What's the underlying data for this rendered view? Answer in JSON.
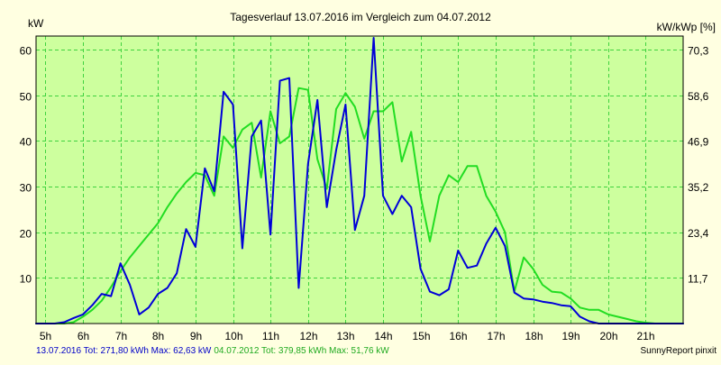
{
  "chart_data": {
    "type": "line",
    "title": "Tagesverlauf 13.07.2016 im Vergleich zum 04.07.2012",
    "ylabel_left": "kW",
    "ylabel_right": "kW/kWp [%]",
    "xlim": [
      4.75,
      22.0
    ],
    "ylim": [
      0,
      63
    ],
    "grid": true,
    "y_ticks_left": [
      10,
      20,
      30,
      40,
      50,
      60
    ],
    "y_ticks_left_labels": [
      "10",
      "20",
      "30",
      "40",
      "50",
      "60"
    ],
    "y_ticks_right": [
      11.7,
      23.4,
      35.2,
      46.9,
      58.6,
      70.3
    ],
    "y_ticks_right_labels": [
      "11,7",
      "23,4",
      "35,2",
      "46,9",
      "58,6",
      "70,3"
    ],
    "right_axis_scale": 1.172,
    "x_ticks": [
      5,
      6,
      7,
      8,
      9,
      10,
      11,
      12,
      13,
      14,
      15,
      16,
      17,
      18,
      19,
      20,
      21
    ],
    "x_tick_labels": [
      "5h",
      "6h",
      "7h",
      "8h",
      "9h",
      "10h",
      "11h",
      "12h",
      "13h",
      "14h",
      "15h",
      "16h",
      "17h",
      "18h",
      "19h",
      "20h",
      "21h"
    ],
    "series": [
      {
        "name": "13.07.2016",
        "color": "#0000d8",
        "x": [
          4.75,
          5.0,
          5.25,
          5.5,
          5.75,
          6.0,
          6.25,
          6.5,
          6.75,
          7.0,
          7.25,
          7.5,
          7.75,
          8.0,
          8.25,
          8.5,
          8.75,
          9.0,
          9.25,
          9.5,
          9.75,
          10.0,
          10.25,
          10.5,
          10.75,
          11.0,
          11.25,
          11.5,
          11.75,
          12.0,
          12.25,
          12.5,
          12.75,
          13.0,
          13.25,
          13.5,
          13.75,
          14.0,
          14.25,
          14.5,
          14.75,
          15.0,
          15.25,
          15.5,
          15.75,
          16.0,
          16.25,
          16.5,
          16.75,
          17.0,
          17.25,
          17.5,
          17.75,
          18.0,
          18.25,
          18.5,
          18.75,
          19.0,
          19.25,
          19.5,
          19.75,
          20.0,
          20.25,
          20.5,
          20.75,
          21.0,
          21.25,
          21.5,
          22.0
        ],
        "values": [
          0,
          0,
          0,
          0.3,
          1.2,
          2.0,
          4.0,
          6.5,
          6.0,
          13.2,
          8.5,
          2.0,
          3.5,
          6.5,
          7.8,
          11.0,
          20.7,
          16.8,
          34.0,
          29.0,
          50.8,
          48.0,
          16.5,
          41.0,
          44.5,
          19.5,
          53.2,
          53.8,
          7.8,
          35.0,
          49.0,
          25.5,
          38.0,
          48.0,
          20.5,
          28.0,
          62.6,
          28.0,
          24.0,
          28.0,
          25.5,
          12.0,
          7.0,
          6.2,
          7.5,
          16.0,
          12.2,
          12.7,
          17.5,
          21.0,
          17.0,
          6.8,
          5.5,
          5.3,
          4.8,
          4.5,
          4.0,
          3.8,
          1.5,
          0.5,
          0,
          0,
          0,
          0,
          0,
          0,
          0,
          0,
          0
        ]
      },
      {
        "name": "04.07.2012",
        "color": "#22dd22",
        "x": [
          4.75,
          5.0,
          5.25,
          5.5,
          5.75,
          6.0,
          6.25,
          6.5,
          6.75,
          7.0,
          7.25,
          7.5,
          7.75,
          8.0,
          8.25,
          8.5,
          8.75,
          9.0,
          9.25,
          9.5,
          9.75,
          10.0,
          10.25,
          10.5,
          10.75,
          11.0,
          11.25,
          11.5,
          11.75,
          12.0,
          12.25,
          12.5,
          12.75,
          13.0,
          13.25,
          13.5,
          13.75,
          14.0,
          14.25,
          14.5,
          14.75,
          15.0,
          15.25,
          15.5,
          15.75,
          16.0,
          16.25,
          16.5,
          16.75,
          17.0,
          17.25,
          17.5,
          17.75,
          18.0,
          18.25,
          18.5,
          18.75,
          19.0,
          19.25,
          19.5,
          19.75,
          20.0,
          20.25,
          20.5,
          20.75,
          21.0,
          21.25,
          21.5,
          22.0
        ],
        "values": [
          0,
          0,
          0,
          0,
          0.3,
          1.5,
          3.0,
          5.0,
          8.0,
          11.5,
          14.5,
          17.0,
          19.5,
          22.0,
          25.5,
          28.5,
          31.0,
          33.0,
          32.5,
          28.0,
          41.0,
          38.5,
          42.5,
          44.0,
          32.0,
          46.5,
          39.5,
          41.0,
          51.6,
          51.2,
          36.0,
          29.5,
          47.0,
          50.5,
          47.5,
          40.5,
          46.5,
          46.5,
          48.5,
          35.5,
          42.0,
          28.0,
          18.0,
          28.0,
          32.5,
          31.0,
          34.5,
          34.5,
          28.0,
          24.5,
          20.0,
          7.0,
          14.5,
          12.0,
          8.5,
          7.0,
          6.8,
          5.5,
          3.5,
          3.0,
          3.0,
          2.0,
          1.5,
          1.0,
          0.5,
          0.2,
          0,
          0,
          0
        ]
      }
    ],
    "footer_series1": "13.07.2016 Tot: 271,80 kWh Max: 62,63 kW",
    "footer_series2": "04.07.2012 Tot: 379,85 kWh Max: 51,76 kW",
    "credit": "SunnyReport pinxit",
    "colors": {
      "background": "#ffffe1",
      "plot_background": "#cdff9e",
      "grid": "#3fd23f",
      "frame": "#000000",
      "footer_blue": "#0000c8",
      "footer_green": "#1faa1f"
    }
  }
}
